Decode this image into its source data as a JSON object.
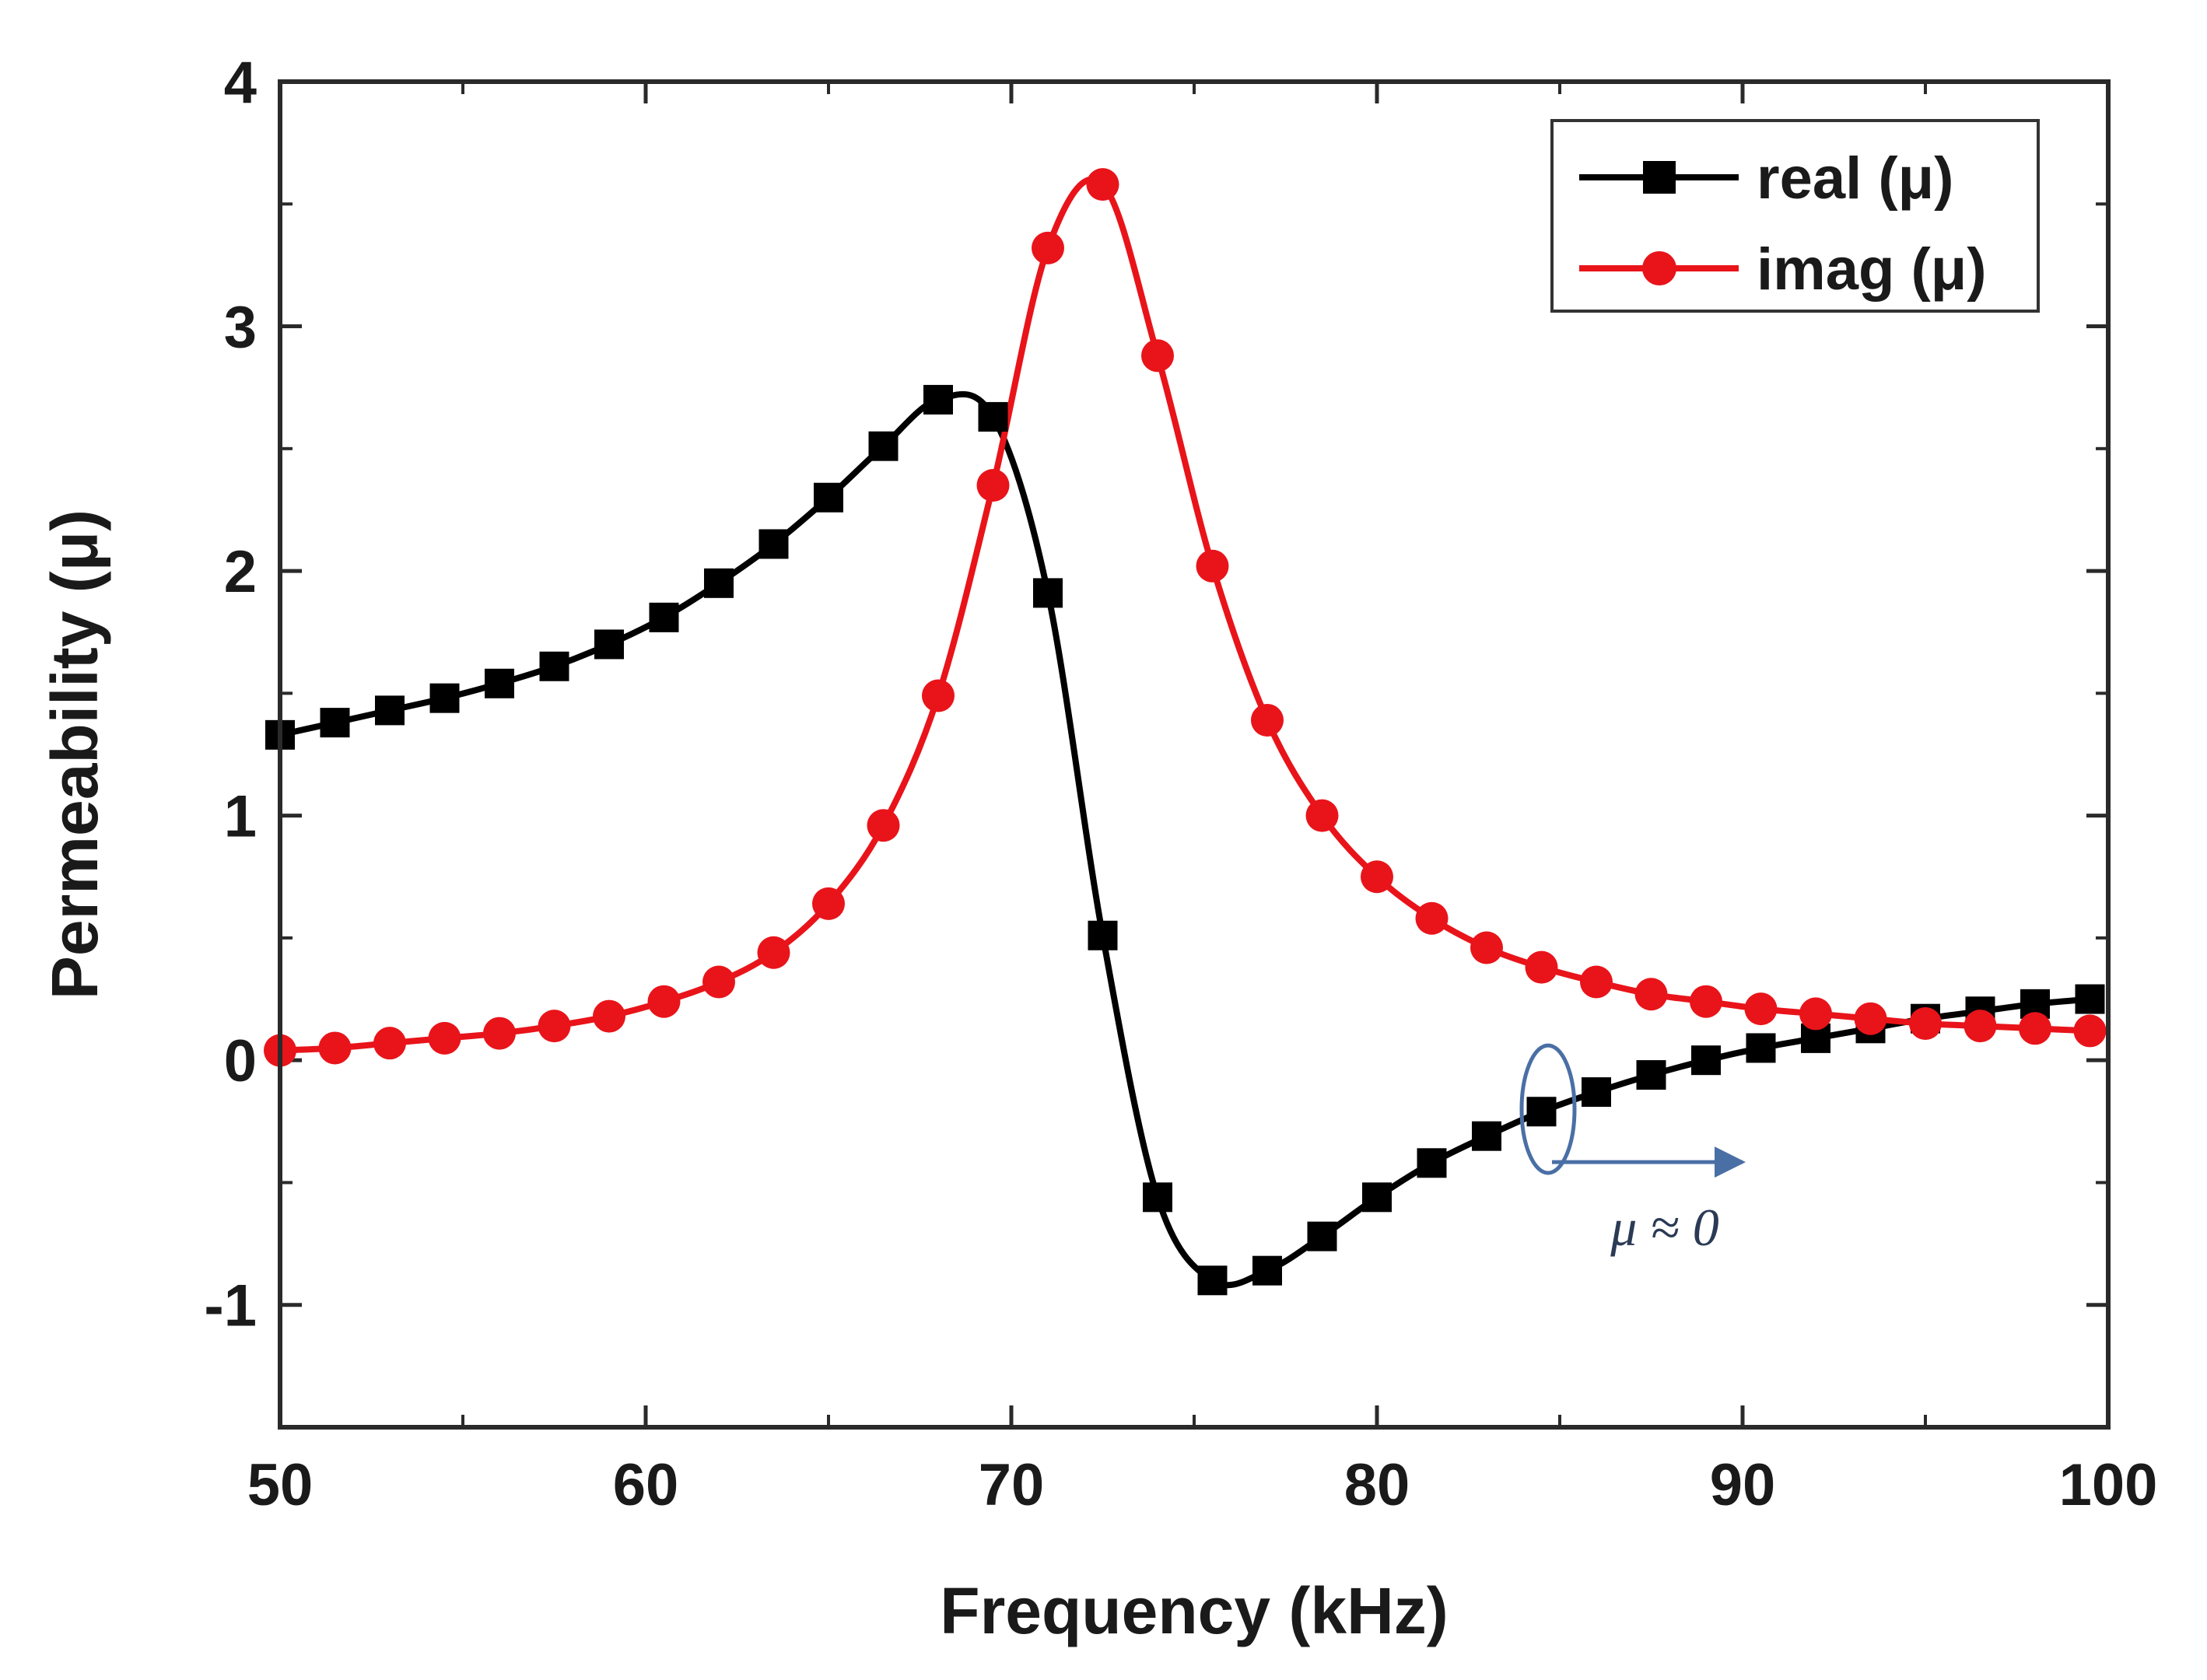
{
  "chart_data": {
    "type": "line",
    "title": "",
    "xlabel": "Frequency (kHz)",
    "ylabel": "Permeability (μ)",
    "xlim": [
      50,
      100
    ],
    "ylim": [
      -1.5,
      4
    ],
    "xticks": [
      50,
      60,
      70,
      80,
      90,
      100
    ],
    "xtick_labels": [
      "50",
      "60",
      "70",
      "80",
      "90",
      "100"
    ],
    "yticks": [
      -1,
      0,
      1,
      2,
      3,
      4
    ],
    "ytick_labels": [
      "-1",
      "0",
      "1",
      "2",
      "3",
      "4"
    ],
    "grid": false,
    "legend_position": "top-right",
    "series": [
      {
        "name": "real (μ)",
        "color": "#000000",
        "marker": "square",
        "x": [
          50,
          51.5,
          53,
          54.5,
          56,
          57.5,
          59,
          60.5,
          62,
          63.5,
          65,
          66.5,
          68,
          69.5,
          71,
          72.5,
          74,
          75.5,
          77,
          78.5,
          80,
          81.5,
          83,
          84.5,
          86,
          87.5,
          89,
          90.5,
          92,
          93.5,
          95,
          96.5,
          98,
          99.5
        ],
        "y": [
          1.33,
          1.38,
          1.43,
          1.48,
          1.54,
          1.61,
          1.7,
          1.81,
          1.95,
          2.11,
          2.3,
          2.51,
          2.7,
          2.63,
          1.91,
          0.51,
          -0.56,
          -0.9,
          -0.86,
          -0.72,
          -0.56,
          -0.42,
          -0.31,
          -0.21,
          -0.13,
          -0.06,
          0.0,
          0.05,
          0.09,
          0.13,
          0.17,
          0.2,
          0.23,
          0.25
        ]
      },
      {
        "name": "imag (μ)",
        "color": "#e8141a",
        "marker": "circle",
        "x": [
          50,
          51.5,
          53,
          54.5,
          56,
          57.5,
          59,
          60.5,
          62,
          63.5,
          65,
          66.5,
          68,
          69.5,
          71,
          72.5,
          74,
          75.5,
          77,
          78.5,
          80,
          81.5,
          83,
          84.5,
          86,
          87.5,
          89,
          90.5,
          92,
          93.5,
          95,
          96.5,
          98,
          99.5
        ],
        "y": [
          0.04,
          0.05,
          0.07,
          0.09,
          0.11,
          0.14,
          0.18,
          0.24,
          0.32,
          0.44,
          0.64,
          0.96,
          1.49,
          2.35,
          3.32,
          3.58,
          2.88,
          2.02,
          1.39,
          1.0,
          0.75,
          0.58,
          0.46,
          0.38,
          0.32,
          0.27,
          0.24,
          0.21,
          0.19,
          0.17,
          0.15,
          0.14,
          0.13,
          0.12
        ]
      }
    ],
    "annotations": [
      {
        "text": "μ ≈ 0",
        "x": 85,
        "y": -0.2
      }
    ]
  }
}
